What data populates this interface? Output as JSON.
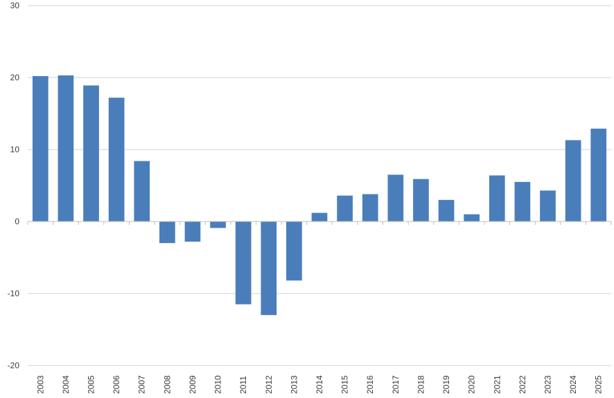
{
  "chart_data": {
    "type": "bar",
    "title": "",
    "xlabel": "",
    "ylabel": "",
    "categories": [
      "2003",
      "2004",
      "2005",
      "2006",
      "2007",
      "2008",
      "2009",
      "2010",
      "2011",
      "2012",
      "2013",
      "2014",
      "2015",
      "2016",
      "2017",
      "2018",
      "2019",
      "2020",
      "2021",
      "2022",
      "2023",
      "2024",
      "2025"
    ],
    "values": [
      20.2,
      20.3,
      18.9,
      17.2,
      8.4,
      -3.0,
      -2.8,
      -0.9,
      -11.5,
      -13.0,
      -8.2,
      1.2,
      3.6,
      3.8,
      6.5,
      5.9,
      3.0,
      1.0,
      6.4,
      5.5,
      4.3,
      11.3,
      12.9
    ],
    "ylim": [
      -20,
      30
    ],
    "yticks": [
      -20,
      -10,
      0,
      10,
      20,
      30
    ],
    "ytick_labels": [
      "-20",
      "-10",
      "0",
      "10",
      "20",
      "30"
    ],
    "grid": true,
    "legend": "none",
    "bar_color": "#4a7ebb"
  }
}
